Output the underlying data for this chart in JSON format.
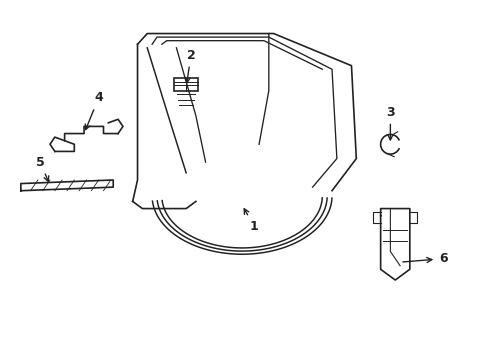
{
  "background": "#ffffff",
  "line_color": "#222222",
  "line_width": 1.2
}
